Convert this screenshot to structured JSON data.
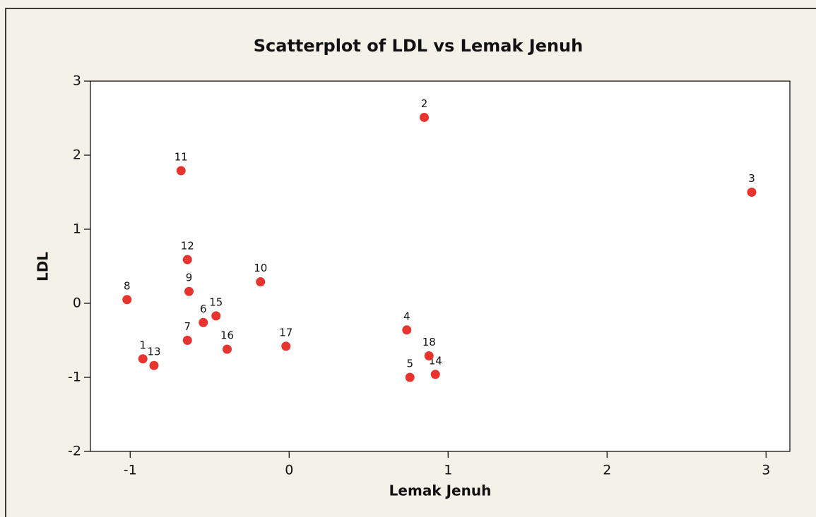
{
  "chart_data": {
    "type": "scatter",
    "title": "Scatterplot of LDL vs Lemak Jenuh",
    "xlabel": "Lemak Jenuh",
    "ylabel": "LDL",
    "point_labels": [
      "1",
      "2",
      "3",
      "4",
      "5",
      "6",
      "7",
      "8",
      "9",
      "10",
      "11",
      "12",
      "13",
      "14",
      "15",
      "16",
      "17",
      "18"
    ],
    "x": [
      -0.92,
      0.85,
      2.91,
      0.74,
      0.76,
      -0.54,
      -0.64,
      -1.02,
      -0.63,
      -0.18,
      -0.68,
      -0.64,
      -0.85,
      0.92,
      -0.46,
      -0.39,
      -0.02,
      0.88
    ],
    "y": [
      -0.75,
      2.51,
      1.5,
      -0.36,
      -1.0,
      -0.26,
      -0.5,
      0.05,
      0.16,
      0.29,
      1.79,
      0.59,
      -0.84,
      -0.96,
      -0.17,
      -0.62,
      -0.58,
      -0.71
    ],
    "color": "#e8342e",
    "xlim": [
      -1.25,
      3.15
    ],
    "xticks": [
      -1,
      0,
      1,
      2,
      3
    ],
    "ylim": [
      -2,
      3
    ],
    "yticks": [
      -2,
      -1,
      0,
      1,
      2,
      3
    ]
  }
}
